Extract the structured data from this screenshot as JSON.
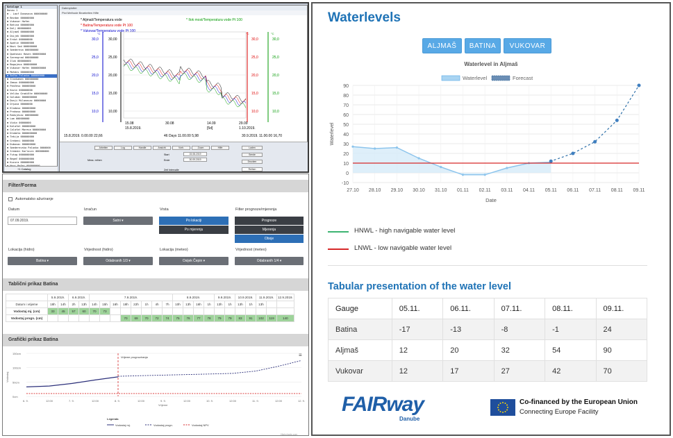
{
  "desktop_app": {
    "title_bar": "DATAPLOT - Corr...",
    "plot_window_title": "Datenplotter",
    "plot_window_menu": "Plot  Methode  Bearbeiten  Hilfe",
    "tree_footer": "+1 Catalog",
    "tree_items": [
      "Kataloge 1",
      "Donau 1",
      "- Lauf Dunavaca 000000000",
      "Bezdan 000000000",
      "Vukovar Hafen",
      "Batina 000000000",
      "Dalj 000000000",
      "Aljmaš 000000000",
      "Osijek 000000000",
      "Erdut 000000000",
      "Apatin 000000000",
      "Novi Sad 000000000",
      "Smederevo 000000000",
      "Opatovac Hasen 000000000",
      "Šarengrad 000000000",
      "Ilok 000000000",
      "Bogojevo 000000000",
      "Vukovar Hafen 0000000000",
      "Mohács 000000000",
      "Bačka Palanka 000000000",
      "Slankamen 000000000",
      "Zemun 0000000000",
      "Pančevo 000000000",
      "Kovin 000000000",
      "Veliko Gradište 000000000",
      "Golubac 0000000000",
      "Donji Milanovac 00000000",
      "Orşova 00000000",
      "Kladovo 000000000",
      "Prahovo 000000000",
      "Radujevac 000000000",
      "Lom 000000000",
      "Vidin 00000000",
      "Kalafat 000000000",
      "Calafat Mareva 000000000",
      "Drobeta 0000000000",
      "Tekija 000000000",
      "Grebeni 00000000",
      "Dubovac 000000000",
      "Smederevska Palanka 0000000",
      "Sremski Karlovci 000000000",
      "Futog 0000000000",
      "Begeč 0000000000",
      "Kucura 000000000",
      "Novi Bečej 000000000",
      "Zrenjanin 000000000",
      "Titel 00000000",
      "Sombor 000000000",
      "Subotica 000000000"
    ],
    "selected_tree_index": 19,
    "legend": {
      "series1": "Aljmaš/Temperatura vode",
      "series2": "Batina/Temperatura vode Pt 100",
      "series3": "Vukovar/Temperatura vode Pt 100",
      "series4": "Ilok most/Temperatura vode Pt 100"
    },
    "axis_left_title": "°C",
    "axis_left_ticks": [
      "30,0",
      "25,0",
      "20,0",
      "15,0",
      "10,0"
    ],
    "axis_inner_ticks": [
      "30,00",
      "25,00",
      "20,00",
      "15,00",
      "10,00"
    ],
    "axis_right_ticks": [
      "30,0",
      "25,0",
      "20,0",
      "15,0",
      "10,0"
    ],
    "x_ticks": [
      "15.08",
      "30.08",
      "14.09",
      "29.09"
    ],
    "x_ticks2": [
      "15.8.2019.",
      "",
      "[5d]",
      "1.10.2019."
    ],
    "status_left": "15.8.2019. 0.00.00   22,66",
    "status_mid": "46 Days  11.00.00   5,98",
    "status_right": "30.9.2019. 11.00.00   16,70",
    "ctrl_buttons": [
      "Arbeiten",
      "Log",
      "Handle",
      "Ansicht",
      "Vorh.",
      "Zoom",
      "Hilfe"
    ],
    "ctrl_right_buttons": [
      "Laden",
      "Sende",
      "Drucken"
    ],
    "ctrl_labels": [
      "Mess. reihen",
      "Start",
      "Ende",
      "Zeit Intervalle"
    ],
    "ctrl_dates": [
      "15.08.2019",
      "30.09.2019"
    ],
    "ctrl_select": "Reihen"
  },
  "web_panel": {
    "filter_title": "Filter/Forma",
    "auto_refresh_label": "Automatsko ažuriranje",
    "date_label": "Datum",
    "date_value": "07.09.2019.",
    "calc_label": "Izračun",
    "calc_value": "Satni ▾",
    "kind_label": "Vrsta",
    "kind_options": [
      "Po lokaciji",
      "Po mjerenju"
    ],
    "filter_label": "Filter prognoze/mjerenja",
    "filter_options": [
      "Prognoze",
      "Mjerenja",
      "Oboje"
    ],
    "loc_hydro_label": "Lokacija (hidro)",
    "loc_hydro_value": "Batina ▾",
    "val_hydro_label": "Vrijednost (hidro)",
    "val_hydro_value": "Odabranih 1/3 ▾",
    "loc_meteo_label": "Lokacija (meteo)",
    "loc_meteo_value": "Osijek Čepin ▾",
    "val_meteo_label": "Vrijednost (meteo)",
    "val_meteo_value": "Odabranih 1/4 ▾",
    "table_title": "Tablični prikaz Batina",
    "table_dates": [
      "5.9.2019.",
      "6.9.2019.",
      "7.9.2019.",
      "8.9.2019.",
      "9.9.2019.",
      "10.9.2019.",
      "11.9.2019.",
      "12.9.2019."
    ],
    "table_row_header": "Datum i vrijeme",
    "table_hours": [
      "18h",
      "14h",
      "2h",
      "13h",
      "14h",
      "15h",
      "16h",
      "18h",
      "22h",
      "1h",
      "4h",
      "7h",
      "10h",
      "13h",
      "16h",
      "1h",
      "13h",
      "1h",
      "13h",
      "1h",
      "13h"
    ],
    "row_measured_label": "Vodostaj mj. (cm)",
    "row_measured": [
      "33",
      "45",
      "57",
      "60",
      "70",
      "73"
    ],
    "row_forecast_label": "Vodostaj progn. (cm)",
    "row_forecast": [
      "70",
      "69",
      "70",
      "72",
      "74",
      "75",
      "76",
      "77",
      "78",
      "79",
      "79",
      "83",
      "91",
      "102",
      "119",
      "140"
    ],
    "graph_title": "Grafički prikaz Batina",
    "graph_ylabel": "Vodostaj",
    "graph_yticks": [
      "150cm",
      "100cm",
      "50cm",
      "0cm"
    ],
    "graph_xticks": [
      "6. 9.",
      "12:00",
      "7. 9.",
      "12:00",
      "8. 9.",
      "12:00",
      "9. 9.",
      "12:00",
      "10. 9.",
      "12:00",
      "11. 9.",
      "12:00",
      "12. 9."
    ],
    "graph_xlabel": "Vrijeme",
    "forecast_time_label": "Vrijeme prognoziranja",
    "legend_title": "Legenda",
    "legend_items": [
      "Vodostaj mj.",
      "Vodostaj progn.",
      "Vodostaj NPV"
    ],
    "credit": "Highcharts.com",
    "menu_icon": "≡"
  },
  "right_panel": {
    "title": "Waterlevels",
    "gauge_buttons": [
      "ALJMAŠ",
      "BATINA",
      "VUKOVAR"
    ],
    "chart_title": "Waterlevel in Aljmaš",
    "legend_waterlevel": "Waterlevel",
    "legend_forecast": "Forecast",
    "hnwl_label": "HNWL - high navigable water level",
    "lnwl_label": "LNWL - low navigable water level",
    "table_title": "Tabular presentation of the water level",
    "table_header": [
      "Gauge",
      "05.11.",
      "06.11.",
      "07.11.",
      "08.11.",
      "09.11."
    ],
    "table_rows": [
      [
        "Batina",
        "-17",
        "-13",
        "-8",
        "-1",
        "24"
      ],
      [
        "Aljmaš",
        "12",
        "20",
        "32",
        "54",
        "90"
      ],
      [
        "Vukovar",
        "12",
        "17",
        "27",
        "42",
        "70"
      ]
    ],
    "logo_text": "FAIRway",
    "logo_sub": "Danube",
    "eu_line1": "Co-financed by the European Union",
    "eu_line2": "Connecting Europe Facility",
    "colors": {
      "accent": "#1f73b6",
      "button": "#58a9e6",
      "hnwl": "#3cb371",
      "lnwl": "#d62728",
      "area": "#a9d4f2"
    }
  },
  "chart_data": [
    {
      "type": "area",
      "title": "Waterlevel in Aljmaš",
      "xlabel": "Date",
      "ylabel": "Waterlevel",
      "categories": [
        "27.10",
        "28.10",
        "29.10",
        "30.10",
        "31.10",
        "01.11",
        "02.11",
        "03.11",
        "04.11",
        "05.11",
        "06.11",
        "07.11",
        "08.11",
        "09.11"
      ],
      "ylim": [
        -10,
        90
      ],
      "yticks": [
        -10,
        0,
        10,
        20,
        30,
        40,
        50,
        60,
        70,
        80,
        90
      ],
      "series": [
        {
          "name": "Waterlevel",
          "values": [
            27,
            25,
            26,
            15,
            6,
            -2,
            -2,
            5,
            10,
            11,
            null,
            null,
            null,
            null
          ]
        },
        {
          "name": "Forecast",
          "values": [
            null,
            null,
            null,
            null,
            null,
            null,
            null,
            null,
            null,
            12,
            20,
            32,
            54,
            90
          ]
        }
      ],
      "lnwl": 10,
      "grid": true,
      "legend": "top"
    },
    {
      "type": "line",
      "title": "",
      "xlabel": "Vrijeme",
      "ylabel": "Vodostaj",
      "categories": [
        "6. 9.",
        "12:00",
        "7. 9.",
        "12:00",
        "8. 9.",
        "12:00",
        "9. 9.",
        "12:00",
        "10. 9.",
        "12:00",
        "11. 9.",
        "12:00",
        "12. 9."
      ],
      "ylim": [
        0,
        150
      ],
      "series": [
        {
          "name": "Vodostaj mj.",
          "values": [
            33,
            36,
            45,
            57,
            68,
            null,
            null,
            null,
            null,
            null,
            null,
            null,
            null
          ]
        },
        {
          "name": "Vodostaj progn.",
          "values": [
            null,
            null,
            null,
            null,
            70,
            72,
            74,
            76,
            78,
            80,
            88,
            105,
            125
          ]
        },
        {
          "name": "Vodostaj NPV",
          "values": [
            10,
            10,
            10,
            10,
            10,
            10,
            10,
            10,
            10,
            10,
            10,
            10,
            10
          ]
        }
      ],
      "legend": "bottom"
    }
  ]
}
